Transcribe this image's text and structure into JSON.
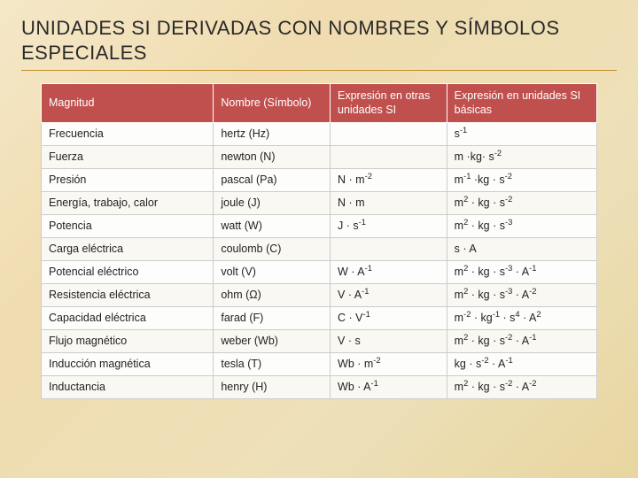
{
  "title": "UNIDADES SI DERIVADAS CON NOMBRES Y SÍMBOLOS ESPECIALES",
  "table": {
    "headers": {
      "magnitud": "Magnitud",
      "nombre": "Nombre (Símbolo)",
      "expr_otras": "Expresión en otras unidades SI",
      "expr_basicas": "Expresión en unidades SI básicas"
    },
    "rows": [
      {
        "magnitud": "Frecuencia",
        "nombre": "hertz (Hz)",
        "otras": "",
        "basicas": "s<sup>-1</sup>"
      },
      {
        "magnitud": "Fuerza",
        "nombre": "newton (N)",
        "otras": "",
        "basicas": "m ·kg· s<sup>-2</sup>"
      },
      {
        "magnitud": "Presión",
        "nombre": "pascal (Pa)",
        "otras": "N · m<sup>-2</sup>",
        "basicas": "m<sup>-1</sup> ·kg · s<sup>-2</sup>"
      },
      {
        "magnitud": "Energía, trabajo, calor",
        "nombre": "joule (J)",
        "otras": "N · m",
        "basicas": "m<sup>2</sup> · kg · s<sup>-2</sup>"
      },
      {
        "magnitud": "Potencia",
        "nombre": "watt (W)",
        "otras": "J · s<sup>-1</sup>",
        "basicas": "m<sup>2</sup> · kg · s<sup>-3</sup>"
      },
      {
        "magnitud": "Carga eléctrica",
        "nombre": "coulomb (C)",
        "otras": "",
        "basicas": "s · A"
      },
      {
        "magnitud": "Potencial eléctrico",
        "nombre": "volt (V)",
        "otras": "W · A<sup>-1</sup>",
        "basicas": "m<sup>2</sup> · kg · s<sup>-3</sup> · A<sup>-1</sup>"
      },
      {
        "magnitud": "Resistencia eléctrica",
        "nombre": "ohm (Ω)",
        "otras": "V · A<sup>-1</sup>",
        "basicas": "m<sup>2</sup> · kg · s<sup>-3</sup> · A<sup>-2</sup>"
      },
      {
        "magnitud": "Capacidad eléctrica",
        "nombre": "farad (F)",
        "otras": "C · V<sup>-1</sup>",
        "basicas": "m<sup>-2</sup> · kg<sup>-1</sup> · s<sup>4</sup> · A<sup>2</sup>"
      },
      {
        "magnitud": "Flujo magnético",
        "nombre": "weber (Wb)",
        "otras": "V · s",
        "basicas": "m<sup>2</sup> · kg · s<sup>-2</sup> · A<sup>-1</sup>"
      },
      {
        "magnitud": "Inducción magnética",
        "nombre": "tesla (T)",
        "otras": "Wb · m<sup>-2</sup>",
        "basicas": "kg · s<sup>-2</sup> · A<sup>-1</sup>"
      },
      {
        "magnitud": "Inductancia",
        "nombre": "henry (H)",
        "otras": "Wb · A<sup>-1</sup>",
        "basicas": "m<sup>2</sup> · kg · s<sup>-2</sup> · A<sup>-2</sup>"
      }
    ]
  }
}
